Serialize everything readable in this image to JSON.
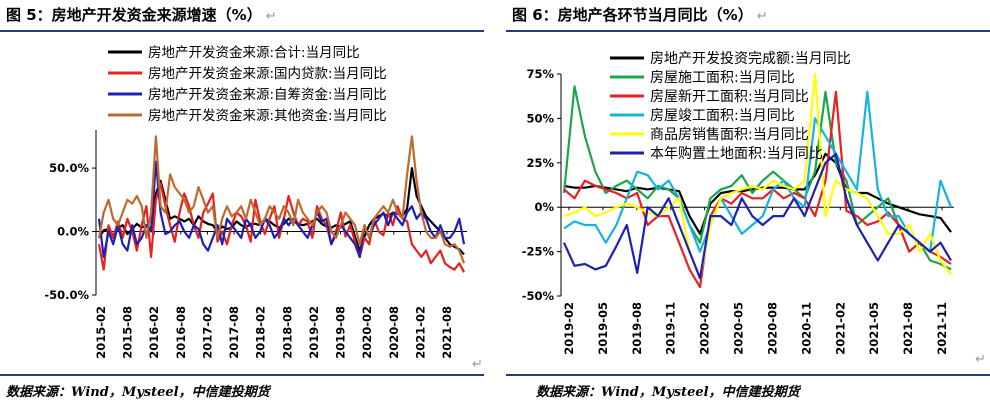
{
  "panels": [
    {
      "title": "图 5：房地产开发资金来源增速（%）",
      "return_mark": "↵",
      "source": "数据来源：Wind，Mysteel，中信建投期货"
    },
    {
      "title": "图 6：房地产各环节当月同比（%）",
      "return_mark": "↵",
      "source": "数据来源：Wind，Mysteel，中信建投期货"
    }
  ],
  "chart_data": [
    {
      "type": "line",
      "ylim": [
        -50,
        80
      ],
      "y_ticks": [
        -50,
        0,
        50
      ],
      "y_tick_labels": [
        "-50.0%",
        "0.0%",
        "50.0%"
      ],
      "x_tick_labels": [
        "2015-02",
        "2015-08",
        "2016-02",
        "2016-08",
        "2017-02",
        "2017-08",
        "2018-02",
        "2018-08",
        "2019-02",
        "2019-08",
        "2020-02",
        "2020-08",
        "2021-02",
        "2021-08"
      ],
      "series": [
        {
          "name": "房地产开发资金来源:合计:当月同比",
          "color": "#000000",
          "values": [
            -5,
            1,
            2,
            -3,
            3,
            5,
            -2,
            2,
            6,
            3,
            5,
            2,
            30,
            40,
            25,
            10,
            12,
            10,
            8,
            10,
            5,
            12,
            8,
            6,
            5,
            0,
            4,
            2,
            3,
            8,
            5,
            3,
            6,
            6,
            5,
            10,
            8,
            5,
            3,
            6,
            10,
            8,
            6,
            5,
            6,
            8,
            10,
            6,
            4,
            3,
            5,
            4,
            6,
            8,
            -4,
            -15,
            -4,
            5,
            10,
            12,
            14,
            12,
            15,
            14,
            12,
            18,
            50,
            28,
            20,
            12,
            8,
            4,
            0,
            -5,
            -10,
            -12,
            -14,
            -18
          ]
        },
        {
          "name": "房地产开发资金来源:国内贷款:当月同比",
          "color": "#e8211f",
          "values": [
            -10,
            -30,
            5,
            -5,
            8,
            -5,
            10,
            0,
            -15,
            5,
            20,
            -20,
            25,
            38,
            20,
            5,
            -8,
            15,
            30,
            20,
            5,
            -5,
            15,
            22,
            30,
            -8,
            0,
            -10,
            5,
            15,
            12,
            5,
            -8,
            25,
            8,
            -2,
            10,
            20,
            -5,
            10,
            28,
            15,
            5,
            10,
            8,
            -5,
            20,
            10,
            5,
            -10,
            0,
            15,
            -4,
            5,
            -8,
            -20,
            -5,
            -10,
            10,
            0,
            -3,
            15,
            5,
            20,
            10,
            8,
            -10,
            -15,
            -20,
            -15,
            -25,
            -20,
            -15,
            -25,
            -28,
            -30,
            -25,
            -32
          ]
        },
        {
          "name": "房地产开发资金来源:自筹资金:当月同比",
          "color": "#1f1fb4",
          "values": [
            10,
            -20,
            0,
            -10,
            5,
            -10,
            -15,
            5,
            -10,
            -5,
            5,
            0,
            55,
            15,
            -2,
            0,
            5,
            8,
            0,
            -5,
            5,
            2,
            -10,
            -15,
            -5,
            5,
            -10,
            10,
            5,
            0,
            -5,
            10,
            5,
            -5,
            0,
            10,
            5,
            -5,
            0,
            10,
            5,
            10,
            5,
            0,
            -5,
            5,
            15,
            8,
            10,
            -10,
            -2,
            5,
            0,
            -5,
            -10,
            -20,
            5,
            -5,
            5,
            10,
            15,
            5,
            15,
            10,
            5,
            15,
            20,
            10,
            15,
            10,
            0,
            -5,
            5,
            -5,
            -5,
            0,
            10,
            -10
          ]
        },
        {
          "name": "房地产开发资金来源:其他资金:当月同比",
          "color": "#c0692e",
          "values": [
            -5,
            15,
            25,
            10,
            5,
            15,
            25,
            22,
            28,
            20,
            -5,
            15,
            75,
            20,
            15,
            45,
            35,
            30,
            25,
            15,
            20,
            35,
            25,
            15,
            20,
            -5,
            10,
            20,
            12,
            15,
            20,
            10,
            25,
            15,
            5,
            10,
            20,
            15,
            10,
            20,
            15,
            5,
            25,
            15,
            10,
            5,
            15,
            20,
            15,
            0,
            -5,
            5,
            15,
            10,
            5,
            -10,
            5,
            -5,
            10,
            15,
            20,
            15,
            25,
            15,
            10,
            45,
            75,
            40,
            15,
            0,
            -5,
            -5,
            0,
            -10,
            -12,
            -10,
            -15,
            -25
          ]
        }
      ]
    },
    {
      "type": "line",
      "ylim": [
        -50,
        75
      ],
      "y_ticks": [
        -50,
        -25,
        0,
        25,
        50,
        75
      ],
      "y_tick_labels": [
        "-50%",
        "-25%",
        "0%",
        "25%",
        "50%",
        "75%"
      ],
      "x_tick_labels": [
        "2019-02",
        "2019-05",
        "2019-08",
        "2019-11",
        "2020-02",
        "2020-05",
        "2020-08",
        "2020-11",
        "2021-02",
        "2021-05",
        "2021-08",
        "2021-11"
      ],
      "series": [
        {
          "name": "房地产开发投资完成额:当月同比",
          "color": "#000000",
          "values": [
            12,
            11,
            11,
            12,
            11,
            10,
            9,
            11,
            10,
            11,
            10,
            9,
            -5,
            -15,
            2,
            8,
            9,
            9,
            10,
            11,
            11,
            11,
            10,
            10,
            18,
            30,
            25,
            10,
            8,
            8,
            5,
            2,
            0,
            -2,
            -4,
            -5,
            -6,
            -14
          ]
        },
        {
          "name": "房屋施工面积:当月同比",
          "color": "#1aa64a",
          "values": [
            8,
            68,
            40,
            20,
            8,
            12,
            15,
            10,
            5,
            12,
            10,
            5,
            -10,
            -20,
            5,
            10,
            12,
            18,
            8,
            15,
            20,
            15,
            10,
            5,
            20,
            65,
            25,
            15,
            -10,
            -5,
            0,
            5,
            -10,
            -25,
            -20,
            -30,
            -32,
            -35
          ]
        },
        {
          "name": "房屋新开工面积:当月同比",
          "color": "#e8211f",
          "values": [
            10,
            5,
            15,
            12,
            10,
            8,
            5,
            8,
            -10,
            -5,
            -5,
            -20,
            -35,
            -45,
            -5,
            5,
            2,
            8,
            5,
            5,
            10,
            5,
            8,
            5,
            -5,
            15,
            65,
            -2,
            -5,
            -10,
            -8,
            -3,
            -10,
            -25,
            -20,
            -25,
            -28,
            -32
          ]
        },
        {
          "name": "房屋竣工面积:当月同比",
          "color": "#16b3e0",
          "values": [
            -12,
            -8,
            -10,
            -10,
            -20,
            -10,
            5,
            20,
            18,
            10,
            15,
            5,
            -10,
            -25,
            -10,
            5,
            -5,
            -15,
            -10,
            -5,
            10,
            15,
            5,
            0,
            50,
            40,
            30,
            20,
            10,
            65,
            10,
            -5,
            -5,
            -15,
            -20,
            -25,
            15,
            0
          ]
        },
        {
          "name": "商品房销售面积:当月同比",
          "color": "#ffff00",
          "values": [
            -5,
            -3,
            0,
            -5,
            -3,
            0,
            2,
            0,
            -3,
            -5,
            0,
            5,
            -25,
            -40,
            -10,
            5,
            8,
            10,
            12,
            10,
            15,
            12,
            10,
            15,
            75,
            -5,
            15,
            10,
            8,
            5,
            -5,
            -15,
            -15,
            -10,
            -25,
            -15,
            -30,
            -38
          ]
        },
        {
          "name": "本年购置土地面积:当月同比",
          "color": "#1f1fb4",
          "values": [
            -20,
            -33,
            -32,
            -35,
            -33,
            -22,
            -10,
            -37,
            0,
            -5,
            5,
            -10,
            -25,
            -40,
            -5,
            -5,
            -10,
            5,
            -5,
            -10,
            -5,
            -5,
            5,
            -5,
            10,
            25,
            30,
            5,
            -10,
            -20,
            -30,
            -20,
            -10,
            -15,
            -20,
            -25,
            -20,
            -30
          ]
        }
      ]
    }
  ]
}
